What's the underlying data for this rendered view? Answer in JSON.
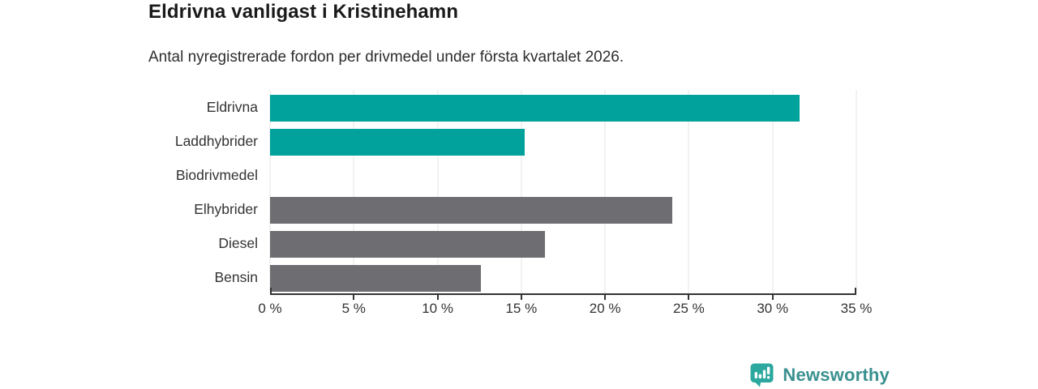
{
  "chart_data": {
    "type": "bar",
    "orientation": "horizontal",
    "title": "Eldrivna vanligast i Kristinehamn",
    "subtitle": "Antal nyregistrerade fordon per drivmedel under första kvartalet 2026.",
    "categories": [
      "Eldrivna",
      "Laddhybrider",
      "Biodrivmedel",
      "Elhybrider",
      "Diesel",
      "Bensin"
    ],
    "values": [
      31.6,
      15.2,
      0,
      24.0,
      16.4,
      12.6
    ],
    "unit": "%",
    "colors": [
      "#00a29b",
      "#00a29b",
      "#00a29b",
      "#6e6e72",
      "#6e6e72",
      "#6e6e72"
    ],
    "xlim": [
      0,
      35
    ],
    "x_ticks": [
      0,
      5,
      10,
      15,
      20,
      25,
      30,
      35
    ],
    "x_tick_labels": [
      "0 %",
      "5 %",
      "10 %",
      "15 %",
      "20 %",
      "25 %",
      "30 %",
      "35 %"
    ],
    "grid": "vertical",
    "legend": "none"
  },
  "theme": {
    "accent_teal": "#00a29b",
    "neutral_gray": "#6e6e72",
    "grid_color": "#e4e4e4",
    "axis_color": "#333333"
  },
  "footer": {
    "brand": "Newsworthy",
    "icon_color": "#2ca89e",
    "text_color": "#3a918f"
  }
}
